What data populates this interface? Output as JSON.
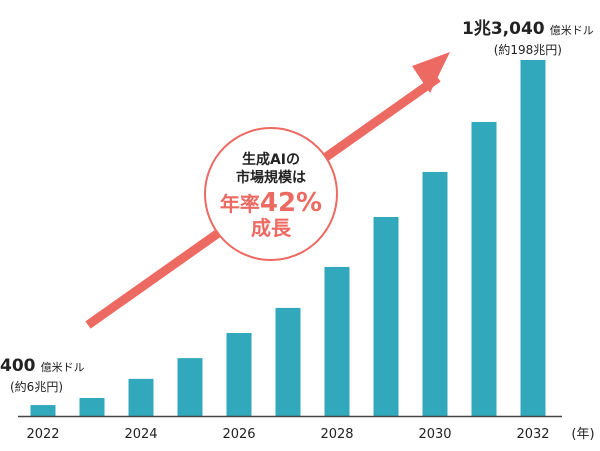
{
  "chart_data": {
    "type": "bar",
    "categories": [
      "2022",
      "2023",
      "2024",
      "2025",
      "2026",
      "2027",
      "2028",
      "2029",
      "2030",
      "2031",
      "2032"
    ],
    "values": [
      400,
      660,
      1360,
      2120,
      3040,
      3960,
      5460,
      7290,
      8940,
      10770,
      13040
    ],
    "tick_labels": [
      "2022",
      "2024",
      "2026",
      "2028",
      "2030",
      "2032"
    ],
    "x_unit": "(年)",
    "ylim": [
      0,
      13040
    ],
    "bar_color": "#31a8bb",
    "arrow_color": "#ec6a62",
    "grid": false,
    "annotations": {
      "start_value": "400",
      "start_unit": "億米ドル",
      "start_sub": "(約6兆円)",
      "end_value": "1兆3,040",
      "end_unit": "億米ドル",
      "end_sub": "(約198兆円)",
      "circle_line1": "生成AIの",
      "circle_line2": "市場規模は",
      "circle_rate_prefix": "年率",
      "circle_rate": "42%",
      "circle_rate_suffix": "成長"
    }
  }
}
